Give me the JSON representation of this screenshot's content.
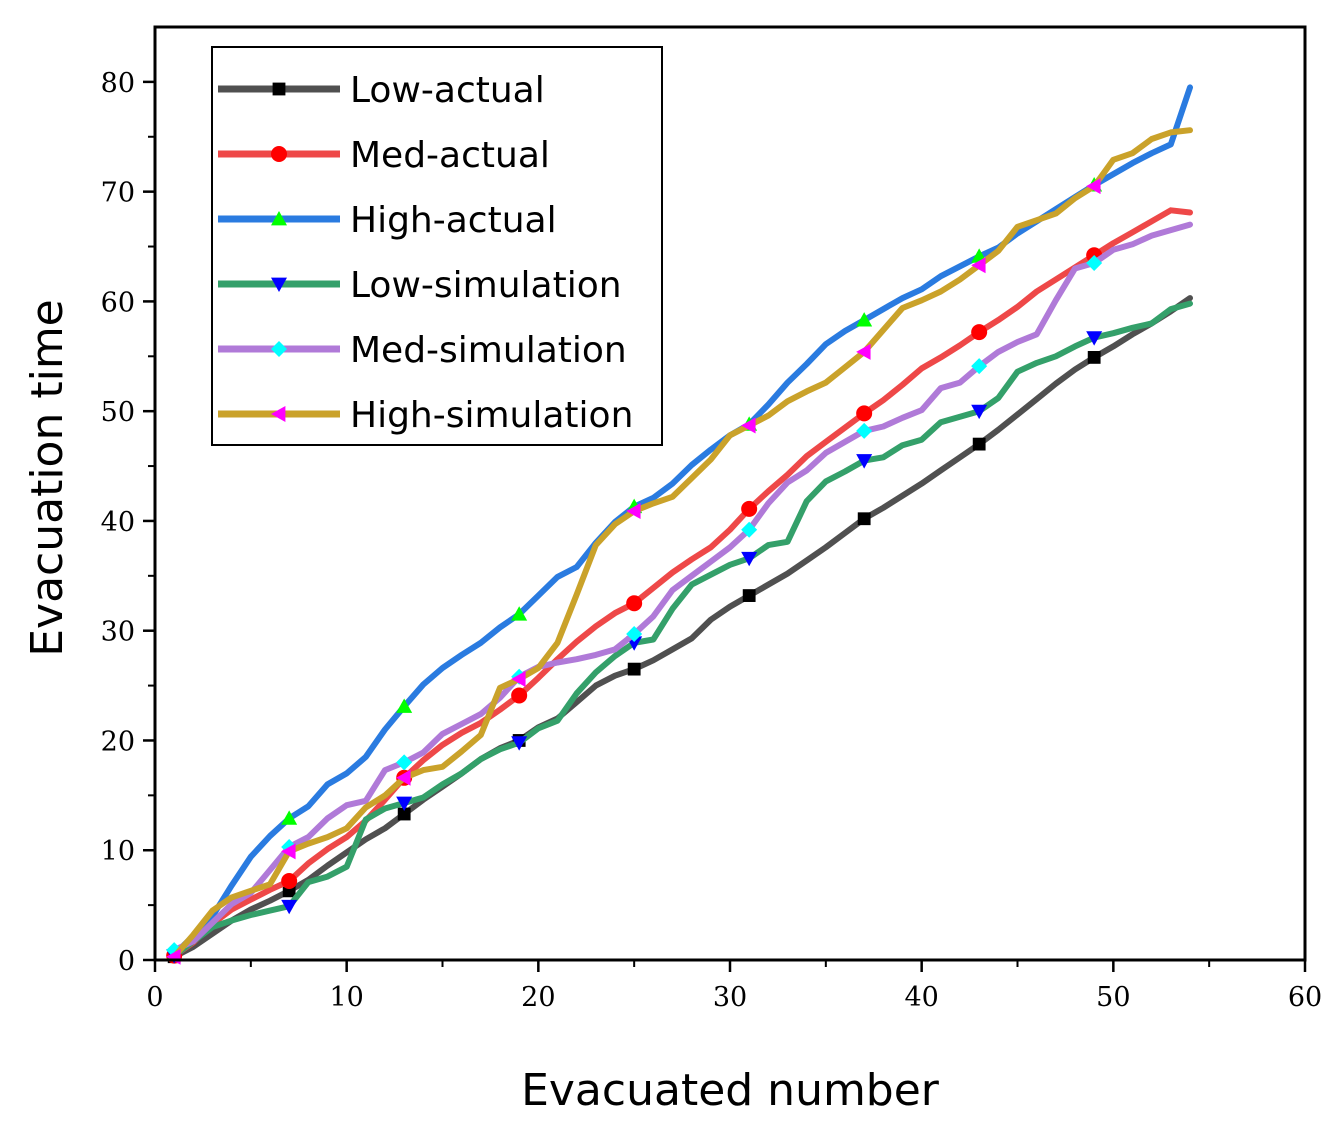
{
  "chart_data": {
    "type": "line",
    "title": "",
    "xlabel": "Evacuated number",
    "ylabel": "Evacuation time",
    "xlim": [
      0,
      60
    ],
    "ylim": [
      0,
      85
    ],
    "xticks": [
      0,
      10,
      20,
      30,
      40,
      50,
      60
    ],
    "yticks": [
      0,
      10,
      20,
      30,
      40,
      50,
      60,
      70,
      80
    ],
    "grid": false,
    "legend_position": "top-left",
    "series": [
      {
        "name": "Low-actual",
        "color": "#505050",
        "marker": "square",
        "marker_color": "#000000",
        "marker_x": [
          1,
          7,
          13,
          19,
          25,
          31,
          37,
          43,
          49
        ],
        "x": [
          1,
          2,
          3,
          4,
          5,
          6,
          7,
          8,
          9,
          10,
          11,
          12,
          13,
          14,
          15,
          16,
          17,
          18,
          19,
          20,
          21,
          22,
          23,
          24,
          25,
          26,
          27,
          28,
          29,
          30,
          31,
          32,
          33,
          34,
          35,
          36,
          37,
          38,
          39,
          40,
          41,
          42,
          43,
          44,
          45,
          46,
          47,
          48,
          49,
          50,
          51,
          52,
          53,
          54
        ],
        "values": [
          0.3,
          1.2,
          2.4,
          3.6,
          4.6,
          5.4,
          6.3,
          7.3,
          8.6,
          9.8,
          11.0,
          12.0,
          13.3,
          14.6,
          15.8,
          17.0,
          18.3,
          19.3,
          20.0,
          21.2,
          22.0,
          23.5,
          25.0,
          25.9,
          26.5,
          27.3,
          28.3,
          29.3,
          31.0,
          32.2,
          33.2,
          34.2,
          35.2,
          36.4,
          37.6,
          38.9,
          40.2,
          41.2,
          42.3,
          43.4,
          44.6,
          45.8,
          47.0,
          48.3,
          49.7,
          51.1,
          52.5,
          53.8,
          54.9,
          55.9,
          57.0,
          58.0,
          59.1,
          60.3
        ]
      },
      {
        "name": "Med-actual",
        "color": "#ee4848",
        "marker": "circle",
        "marker_color": "#ff0000",
        "marker_x": [
          1,
          7,
          13,
          19,
          25,
          31,
          37,
          43,
          49
        ],
        "x": [
          1,
          2,
          3,
          4,
          5,
          6,
          7,
          8,
          9,
          10,
          11,
          12,
          13,
          14,
          15,
          16,
          17,
          18,
          19,
          20,
          21,
          22,
          23,
          24,
          25,
          26,
          27,
          28,
          29,
          30,
          31,
          32,
          33,
          34,
          35,
          36,
          37,
          38,
          39,
          40,
          41,
          42,
          43,
          44,
          45,
          46,
          47,
          48,
          49,
          50,
          51,
          52,
          53,
          54
        ],
        "values": [
          0.4,
          1.6,
          3.3,
          4.6,
          5.5,
          6.4,
          7.2,
          8.8,
          10.1,
          11.2,
          12.7,
          14.6,
          16.6,
          18.2,
          19.6,
          20.7,
          21.6,
          22.8,
          24.1,
          25.7,
          27.4,
          29.0,
          30.4,
          31.6,
          32.5,
          33.9,
          35.3,
          36.5,
          37.6,
          39.2,
          41.1,
          42.7,
          44.2,
          45.9,
          47.2,
          48.5,
          49.8,
          51.0,
          52.4,
          53.9,
          54.9,
          56.0,
          57.2,
          58.3,
          59.5,
          60.9,
          62.0,
          63.1,
          64.2,
          65.3,
          66.3,
          67.3,
          68.3,
          68.1
        ]
      },
      {
        "name": "High-actual",
        "color": "#2a7be0",
        "marker": "triangle-up",
        "marker_color": "#00ff00",
        "marker_x": [
          1,
          7,
          13,
          19,
          25,
          31,
          37,
          43,
          49
        ],
        "x": [
          1,
          2,
          3,
          4,
          5,
          6,
          7,
          8,
          9,
          10,
          11,
          12,
          13,
          14,
          15,
          16,
          17,
          18,
          19,
          20,
          21,
          22,
          23,
          24,
          25,
          26,
          27,
          28,
          29,
          30,
          31,
          32,
          33,
          34,
          35,
          36,
          37,
          38,
          39,
          40,
          41,
          42,
          43,
          44,
          45,
          46,
          47,
          48,
          49,
          50,
          51,
          52,
          53,
          54
        ],
        "values": [
          0.5,
          2.2,
          4.0,
          6.8,
          9.4,
          11.3,
          12.9,
          14.0,
          16.0,
          17.0,
          18.5,
          21.0,
          23.1,
          25.1,
          26.6,
          27.8,
          28.9,
          30.3,
          31.5,
          33.2,
          34.9,
          35.8,
          38.0,
          39.9,
          41.3,
          42.1,
          43.4,
          45.1,
          46.5,
          47.8,
          48.8,
          50.6,
          52.6,
          54.3,
          56.1,
          57.3,
          58.3,
          59.3,
          60.3,
          61.1,
          62.3,
          63.2,
          64.1,
          64.9,
          66.2,
          67.3,
          68.4,
          69.5,
          70.6,
          71.6,
          72.6,
          73.5,
          74.3,
          79.5
        ]
      },
      {
        "name": "Low-simulation",
        "color": "#34a06a",
        "marker": "triangle-down",
        "marker_color": "#0000ff",
        "marker_x": [
          1,
          7,
          13,
          19,
          25,
          31,
          37,
          43,
          49
        ],
        "x": [
          1,
          2,
          3,
          4,
          5,
          6,
          7,
          8,
          9,
          10,
          11,
          12,
          13,
          14,
          15,
          16,
          17,
          18,
          19,
          20,
          21,
          22,
          23,
          24,
          25,
          26,
          27,
          28,
          29,
          30,
          31,
          32,
          33,
          34,
          35,
          36,
          37,
          38,
          39,
          40,
          41,
          42,
          43,
          44,
          45,
          46,
          47,
          48,
          49,
          50,
          51,
          52,
          53,
          54
        ],
        "values": [
          0.4,
          1.7,
          3.0,
          3.6,
          4.1,
          4.5,
          4.9,
          7.1,
          7.6,
          8.5,
          12.8,
          13.8,
          14.3,
          14.8,
          16.0,
          17.0,
          18.3,
          19.2,
          19.8,
          21.1,
          21.8,
          24.3,
          26.2,
          27.7,
          28.9,
          29.2,
          32.0,
          34.2,
          35.1,
          36.0,
          36.6,
          37.8,
          38.1,
          41.8,
          43.6,
          44.5,
          45.5,
          45.8,
          46.9,
          47.4,
          49.0,
          49.5,
          50.0,
          51.2,
          53.6,
          54.4,
          55.0,
          55.9,
          56.7,
          57.1,
          57.6,
          58.0,
          59.3,
          59.8
        ]
      },
      {
        "name": "Med-simulation",
        "color": "#b07ad8",
        "marker": "diamond",
        "marker_color": "#00ffff",
        "marker_x": [
          1,
          7,
          13,
          19,
          25,
          31,
          37,
          43,
          49
        ],
        "x": [
          1,
          2,
          3,
          4,
          5,
          6,
          7,
          8,
          9,
          10,
          11,
          12,
          13,
          14,
          15,
          16,
          17,
          18,
          19,
          20,
          21,
          22,
          23,
          24,
          25,
          26,
          27,
          28,
          29,
          30,
          31,
          32,
          33,
          34,
          35,
          36,
          37,
          38,
          39,
          40,
          41,
          42,
          43,
          44,
          45,
          46,
          47,
          48,
          49,
          50,
          51,
          52,
          53,
          54
        ],
        "values": [
          0.9,
          1.7,
          3.4,
          5.1,
          6.1,
          8.2,
          10.3,
          11.2,
          12.9,
          14.1,
          14.5,
          17.3,
          18.0,
          18.9,
          20.6,
          21.5,
          22.4,
          23.9,
          25.8,
          26.7,
          27.1,
          27.4,
          27.8,
          28.3,
          29.7,
          31.3,
          33.7,
          35.0,
          36.3,
          37.6,
          39.2,
          41.6,
          43.5,
          44.6,
          46.2,
          47.2,
          48.2,
          48.6,
          49.4,
          50.1,
          52.1,
          52.6,
          54.1,
          55.4,
          56.3,
          57.0,
          60.1,
          63.0,
          63.5,
          64.7,
          65.2,
          66.0,
          66.5,
          67.0
        ]
      },
      {
        "name": "High-simulation",
        "color": "#caa22a",
        "marker": "triangle-left",
        "marker_color": "#ff00ff",
        "marker_x": [
          1,
          7,
          13,
          19,
          25,
          31,
          37,
          43,
          49
        ],
        "x": [
          1,
          2,
          3,
          4,
          5,
          6,
          7,
          8,
          9,
          10,
          11,
          12,
          13,
          14,
          15,
          16,
          17,
          18,
          19,
          20,
          21,
          22,
          23,
          24,
          25,
          26,
          27,
          28,
          29,
          30,
          31,
          32,
          33,
          34,
          35,
          36,
          37,
          38,
          39,
          40,
          41,
          42,
          43,
          44,
          45,
          46,
          47,
          48,
          49,
          50,
          51,
          52,
          53,
          54
        ],
        "values": [
          0.3,
          2.3,
          4.5,
          5.7,
          6.3,
          6.9,
          9.9,
          10.6,
          11.2,
          12.0,
          13.9,
          15.0,
          16.6,
          17.3,
          17.6,
          19.0,
          20.5,
          24.8,
          25.6,
          26.6,
          28.9,
          33.3,
          37.8,
          39.7,
          40.9,
          41.6,
          42.2,
          43.9,
          45.6,
          47.8,
          48.7,
          49.6,
          50.9,
          51.8,
          52.6,
          54.0,
          55.4,
          57.4,
          59.4,
          60.1,
          60.9,
          62.0,
          63.3,
          64.6,
          66.8,
          67.4,
          68.0,
          69.4,
          70.5,
          72.9,
          73.5,
          74.8,
          75.4,
          75.6
        ]
      }
    ]
  }
}
